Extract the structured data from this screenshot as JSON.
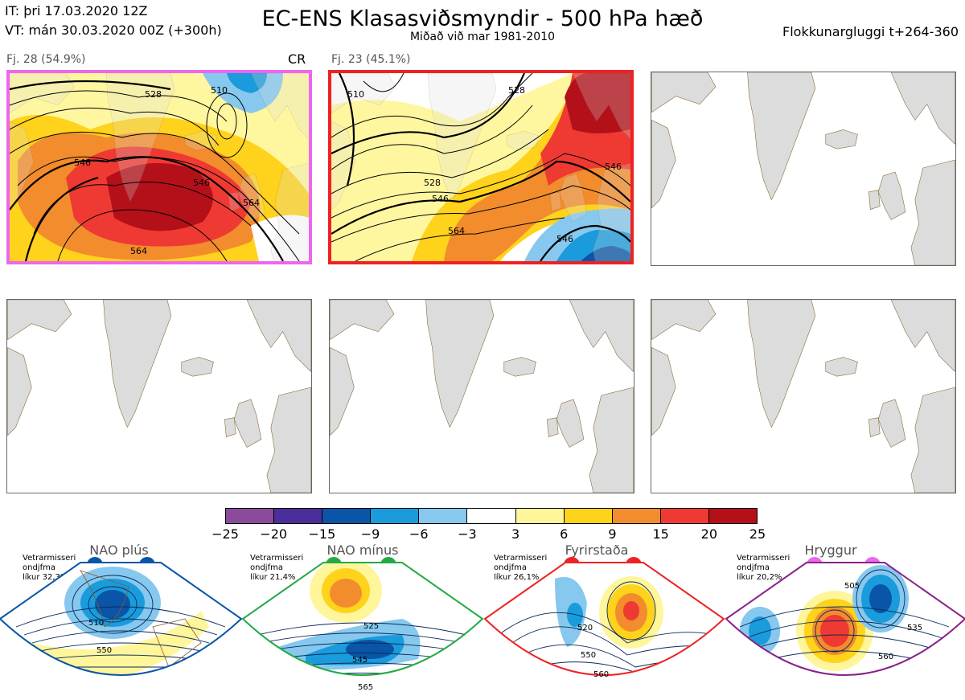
{
  "header": {
    "issue_time": "IT: þri 17.03.2020 12Z",
    "valid_time": "VT: mán 30.03.2020 00Z  (+300h)",
    "title": "EC-ENS Klasasviðsmyndir - 500 hPa hæð",
    "subtitle": "Miðað við mar 1981-2010",
    "window": "Flokkunargluggi t+264-360"
  },
  "clusters": [
    {
      "label": "Fj. 28 (54.9%)",
      "tag": "CR",
      "frame_color": "#ee66ee",
      "contour_labels": [
        "528",
        "510",
        "546",
        "546",
        "564",
        "564"
      ]
    },
    {
      "label": "Fj. 23 (45.1%)",
      "frame_color": "#ee2222",
      "contour_labels": [
        "510",
        "528",
        "528",
        "546",
        "564",
        "546",
        "546"
      ]
    }
  ],
  "colorbar": {
    "ticks": [
      "−25",
      "−20",
      "−15",
      "−9",
      "−6",
      "−3",
      "3",
      "6",
      "9",
      "15",
      "20",
      "25"
    ],
    "colors": [
      "#8b4a9c",
      "#4a2f9a",
      "#0a55a8",
      "#1a9bdc",
      "#86c8ee",
      "#ffffff",
      "#fff59a",
      "#ffd21c",
      "#f28c2c",
      "#ee3a32",
      "#b3101a"
    ]
  },
  "regimes": [
    {
      "title": "NAO plús",
      "note": "Vetrarmisseri\nondjfma\nlíkur 32,3%",
      "frame_color": "#0a55a8",
      "dot_color": "#0a55a8",
      "contour_labels": [
        "510",
        "550"
      ]
    },
    {
      "title": "NAO mínus",
      "note": "Vetrarmisseri\nondjfma\nlíkur 21,4%",
      "frame_color": "#22aa44",
      "dot_color": "#22aa44",
      "contour_labels": [
        "525",
        "545",
        "565"
      ]
    },
    {
      "title": "Fyrirstaða",
      "note": "Vetrarmisseri\nondjfma\nlíkur 26,1%",
      "frame_color": "#ee2222",
      "dot_color": "#ee2222",
      "contour_labels": [
        "520",
        "550",
        "560"
      ]
    },
    {
      "title": "Hryggur",
      "note": "Vetrarmisseri\nondjfma\nlíkur 20,2%",
      "frame_color": "#882288",
      "dot_color": "#ee66ee",
      "contour_labels": [
        "505",
        "535",
        "560"
      ]
    }
  ]
}
